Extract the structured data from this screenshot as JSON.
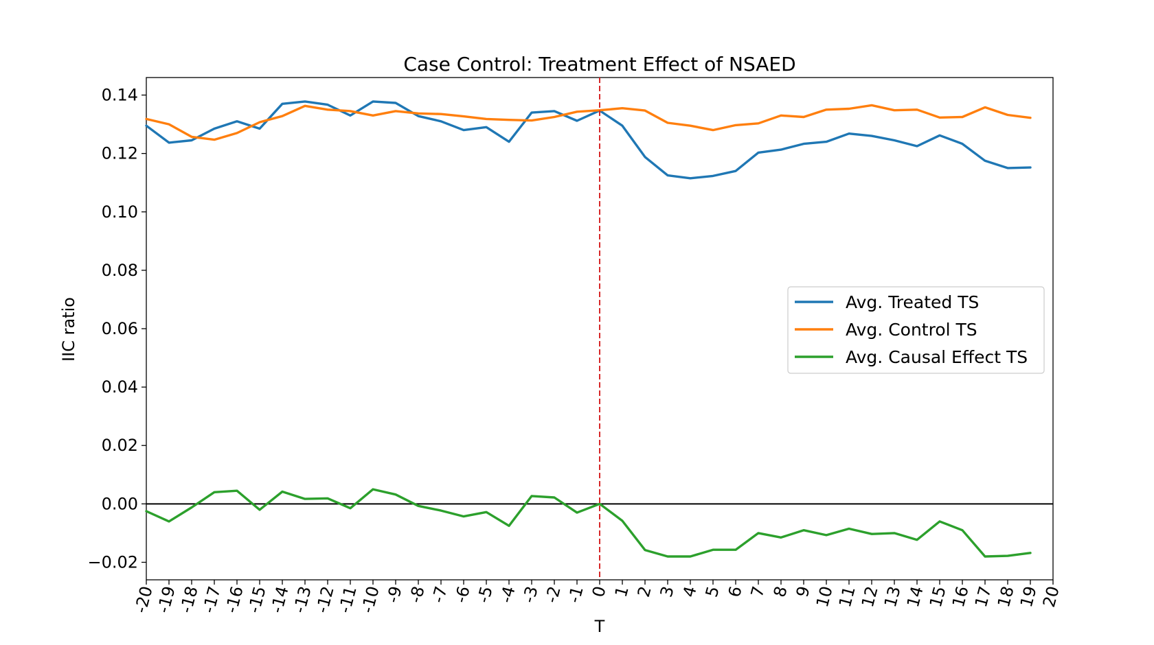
{
  "chart_data": {
    "type": "line",
    "title": "Case Control: Treatment Effect of NSAED",
    "xlabel": "T",
    "ylabel": "IIC ratio",
    "xlim": [
      -20,
      20
    ],
    "ylim": [
      -0.026,
      0.146
    ],
    "x_ticks": [
      -20,
      -19,
      -18,
      -17,
      -16,
      -15,
      -14,
      -13,
      -12,
      -11,
      -10,
      -9,
      -8,
      -7,
      -6,
      -5,
      -4,
      -3,
      -2,
      -1,
      0,
      1,
      2,
      3,
      4,
      5,
      6,
      7,
      8,
      9,
      10,
      11,
      12,
      13,
      14,
      15,
      16,
      17,
      18,
      19,
      20
    ],
    "y_ticks": [
      -0.02,
      0.0,
      0.02,
      0.04,
      0.06,
      0.08,
      0.1,
      0.12,
      0.14
    ],
    "y_tick_labels": [
      "−0.02",
      "0.00",
      "0.02",
      "0.04",
      "0.06",
      "0.08",
      "0.10",
      "0.12",
      "0.14"
    ],
    "legend_position": "center-right",
    "grid": false,
    "reference_lines": {
      "vertical_x": 0,
      "vertical_color": "#d62728",
      "vertical_style": "dashed",
      "horizontal_y": 0,
      "horizontal_color": "#000000"
    },
    "x": [
      -20,
      -19,
      -18,
      -17,
      -16,
      -15,
      -14,
      -13,
      -12,
      -11,
      -10,
      -9,
      -8,
      -7,
      -6,
      -5,
      -4,
      -3,
      -2,
      -1,
      0,
      1,
      2,
      3,
      4,
      5,
      6,
      7,
      8,
      9,
      10,
      11,
      12,
      13,
      14,
      15,
      16,
      17,
      18,
      19
    ],
    "series": [
      {
        "name": "Avg. Treated TS",
        "color": "#1f77b4",
        "values": [
          0.1295,
          0.1237,
          0.1245,
          0.1285,
          0.131,
          0.1285,
          0.137,
          0.1378,
          0.1367,
          0.133,
          0.1378,
          0.1373,
          0.1328,
          0.131,
          0.128,
          0.129,
          0.124,
          0.134,
          0.1345,
          0.1312,
          0.1347,
          0.1295,
          0.1188,
          0.1125,
          0.1115,
          0.1123,
          0.114,
          0.1203,
          0.1213,
          0.1233,
          0.124,
          0.1268,
          0.126,
          0.1245,
          0.1225,
          0.1262,
          0.1233,
          0.1175,
          0.115,
          0.1152
        ]
      },
      {
        "name": "Avg. Control TS",
        "color": "#ff7f0e",
        "values": [
          0.1318,
          0.13,
          0.1257,
          0.1247,
          0.127,
          0.1307,
          0.1328,
          0.1363,
          0.135,
          0.1345,
          0.133,
          0.1345,
          0.1337,
          0.1335,
          0.1327,
          0.1318,
          0.1315,
          0.1313,
          0.1325,
          0.1343,
          0.1348,
          0.1355,
          0.1347,
          0.1305,
          0.1295,
          0.128,
          0.1297,
          0.1303,
          0.133,
          0.1325,
          0.135,
          0.1353,
          0.1365,
          0.1348,
          0.135,
          0.1323,
          0.1325,
          0.1358,
          0.1332,
          0.1322
        ]
      },
      {
        "name": "Avg. Causal Effect TS",
        "color": "#2ca02c",
        "values": [
          -0.0025,
          -0.006,
          -0.0012,
          0.004,
          0.0045,
          -0.002,
          0.0042,
          0.0017,
          0.0019,
          -0.0015,
          0.005,
          0.0032,
          -0.0007,
          -0.0023,
          -0.0043,
          -0.0028,
          -0.0075,
          0.0027,
          0.0022,
          -0.003,
          0.0,
          -0.0058,
          -0.0158,
          -0.018,
          -0.018,
          -0.0157,
          -0.0157,
          -0.01,
          -0.0115,
          -0.009,
          -0.0107,
          -0.0085,
          -0.0103,
          -0.01,
          -0.0123,
          -0.006,
          -0.009,
          -0.018,
          -0.0178,
          -0.0168
        ]
      }
    ]
  }
}
